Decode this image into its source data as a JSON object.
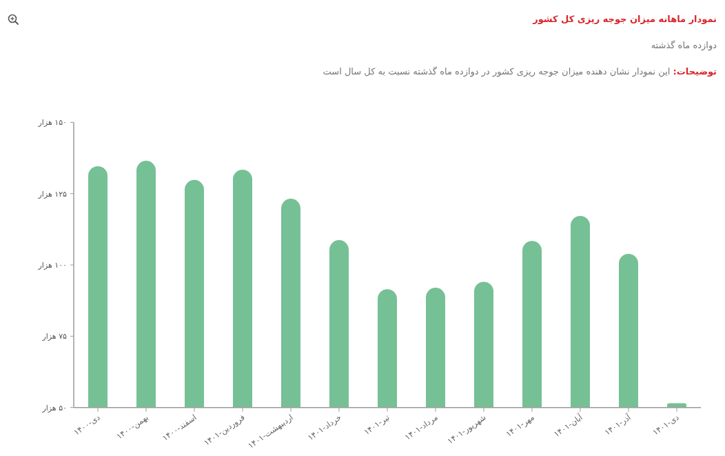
{
  "chart_data": {
    "type": "bar",
    "title": "نمودار ماهانه میزان جوجه ریزی کل کشور",
    "subtitle": "دوازده ماه گذشته",
    "annotations": [
      "توضیحات: این نمودار نشان دهنده میزان جوجه ریزی کشور در دوازده ماه گذشته نسبت به کل سال است"
    ],
    "categories": [
      "دی-۱۴۰۰",
      "بهمن-۱۴۰۰",
      "اسفند-۱۴۰۰",
      "فروردین-۱۴۰۱",
      "اردیبهشت-۱۴۰۱",
      "خرداد-۱۴۰۱",
      "تیر-۱۴۰۱",
      "مرداد-۱۴۰۱",
      "شهریور-۱۴۰۱",
      "مهر-۱۴۰۱",
      "آبان-۱۴۰۱",
      "آذر-۱۴۰۱",
      "دی-۱۴۰۱"
    ],
    "values": [
      134.6,
      136.5,
      129.8,
      133.4,
      123.2,
      108.7,
      91.5,
      92.0,
      94.1,
      108.4,
      117.2,
      103.9,
      51.5
    ],
    "color": "#76c095",
    "ylim": [
      50,
      150
    ],
    "yticks": [
      {
        "value": 50,
        "label": "۵۰ هزار"
      },
      {
        "value": 75,
        "label": "۷۵ هزار"
      },
      {
        "value": 100,
        "label": "۱۰۰ هزار"
      },
      {
        "value": 125,
        "label": "۱۲۵ هزار"
      },
      {
        "value": 150,
        "label": "۱۵۰ هزار"
      }
    ]
  }
}
